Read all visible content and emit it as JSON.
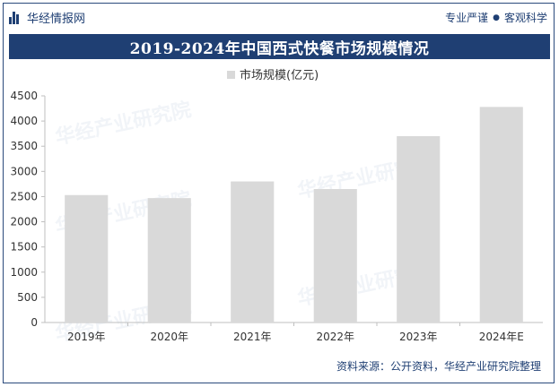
{
  "header": {
    "brand_name": "华经情报网",
    "slogan_left": "专业严谨",
    "slogan_right": "客观科学"
  },
  "source_text": "资料来源：公开资料，华经产业研究院整理",
  "watermark_text": "华经产业研究院",
  "colors": {
    "navy": "#1f3f73",
    "bar": "#d9d9d9",
    "axis": "#bfbfbf"
  },
  "chart_data": {
    "type": "bar",
    "title": "2019-2024年中国西式快餐市场规模情况",
    "categories": [
      "2019年",
      "2020年",
      "2021年",
      "2022年",
      "2023年",
      "2024年E"
    ],
    "series": [
      {
        "name": "市场规模(亿元)",
        "values": [
          2530,
          2470,
          2800,
          2650,
          3700,
          4280
        ]
      }
    ],
    "y_ticks": [
      0,
      500,
      1000,
      1500,
      2000,
      2500,
      3000,
      3500,
      4000,
      4500
    ],
    "ylim": [
      0,
      4500
    ],
    "legend_position": "top-center",
    "grid": false
  }
}
